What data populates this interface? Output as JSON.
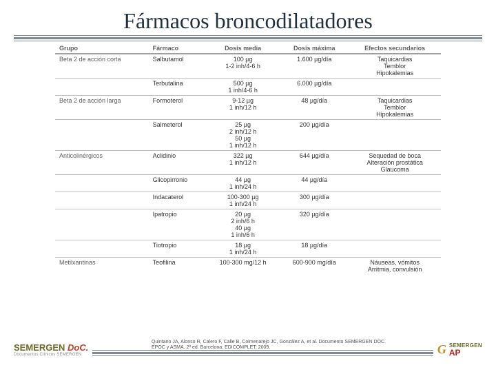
{
  "title": "Fármacos broncodilatadores",
  "table": {
    "headers": {
      "group": "Grupo",
      "drug": "Fármaco",
      "avg": "Dosis media",
      "max": "Dosis máxima",
      "side": "Efectos secundarios"
    },
    "rows": [
      {
        "sep": false,
        "group": "Beta 2 de acción corta",
        "drug": "Salbutamol",
        "avg": "100 µg\n1-2 inh/4-6 h",
        "max": "1.600 µg/día",
        "side": "Taquicardias\nTemblor\nHipokalemias"
      },
      {
        "sep": true,
        "group": "",
        "drug": "Terbutalina",
        "avg": "500 µg\n1 inh/4-6 h",
        "max": "6.000 µg/día",
        "side": ""
      },
      {
        "sep": true,
        "group": "Beta 2 de acción larga",
        "drug": "Formoterol",
        "avg": "9-12 µg\n1 inh/12 h",
        "max": "48 µg/día",
        "side": "Taquicardias\nTemblor\nHipokalemias"
      },
      {
        "sep": true,
        "group": "",
        "drug": "Salmeterol",
        "avg": "25 µg\n2 inh/12 h\n50 µg\n1 inh/12 h",
        "max": "200 µg/día",
        "side": ""
      },
      {
        "sep": true,
        "group": "Anticolinérgicos",
        "drug": "Aclidinio",
        "avg": "322 µg\n1 inh/12 h",
        "max": "644 µg/día",
        "side": "Sequedad de boca\nAlteración prostática\nGlaucoma"
      },
      {
        "sep": true,
        "group": "",
        "drug": "Glicopirronio",
        "avg": "44 µg\n1 inh/24 h",
        "max": "44 µg/día",
        "side": ""
      },
      {
        "sep": true,
        "group": "",
        "drug": "Indacaterol",
        "avg": "100-300 µg\n1 inh/24 h",
        "max": "300 µg/día",
        "side": ""
      },
      {
        "sep": true,
        "group": "",
        "drug": "Ipatropio",
        "avg": "20 µg\n2 inh/6 h\n40 µg\n1 inh/6 h",
        "max": "320 µg/día",
        "side": ""
      },
      {
        "sep": true,
        "group": "",
        "drug": "Tiotropio",
        "avg": "18 µg\n1 inh/24 h",
        "max": "18 µg/día",
        "side": ""
      },
      {
        "sep": true,
        "group": "Metilxantinas",
        "drug": "Teofilina",
        "avg": "100-300 mg/12 h",
        "max": "600-900 mg/día",
        "side": "Náuseas, vómitos\nArritmia, convulsión"
      }
    ]
  },
  "citation": "Quintano JA, Alonso R, Calero F, Calle B, Colmenarejo JC, González A, et al. Documento SEMERGEN DOC. EPOC y ASMA. 2ª ed. Barcelona: EDICOMPLET; 2009.",
  "logoLeft": {
    "brand": "SEMERGEN",
    "doc": "DoC.",
    "sub": "Documentos Clínicos SEMERGEN"
  },
  "logoRight": {
    "g": "G",
    "semergen": "SEMERGEN",
    "ap": "AP"
  },
  "colors": {
    "titleColor": "#203040",
    "ruleColor": "#808890",
    "headerText": "#606060",
    "border": "#c0c0c0",
    "brandGreen": "#6a6a28",
    "brandRed": "#c04020",
    "apRed": "#b02418",
    "gGold": "#c09020"
  }
}
